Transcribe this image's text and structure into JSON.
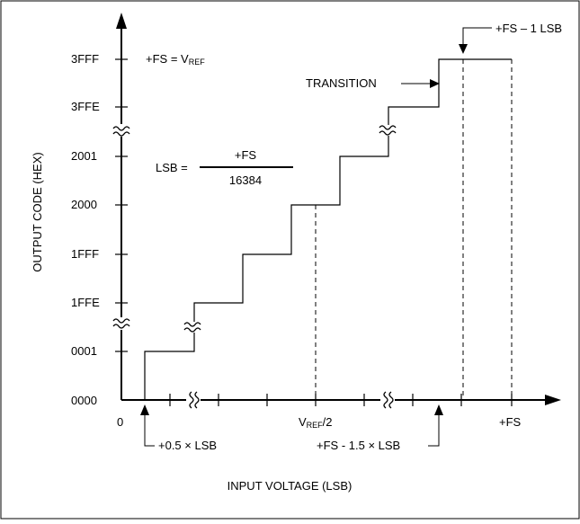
{
  "y_axis": {
    "title": "OUTPUT CODE (HEX)",
    "ticks": [
      "0000",
      "0001",
      "1FFE",
      "1FFF",
      "2000",
      "2001",
      "3FFE",
      "3FFF"
    ]
  },
  "x_axis": {
    "title": "INPUT VOLTAGE (LSB)",
    "origin_label": "0",
    "mid_label_main": "V",
    "mid_label_sub": "REF",
    "mid_label_suffix": "/2",
    "end_label": "+FS"
  },
  "annotations": {
    "fs_def_prefix": "+FS = V",
    "fs_def_sub": "REF",
    "lsb_lhs": "LSB =",
    "lsb_numerator": "+FS",
    "lsb_denominator": "16384",
    "transition": "TRANSITION",
    "top_marker": "+FS – 1 LSB",
    "bottom_left_marker": "+0.5 × LSB",
    "bottom_right_marker": "+FS - 1.5 × LSB"
  },
  "colors": {
    "line": "#000000",
    "background": "#ffffff"
  }
}
